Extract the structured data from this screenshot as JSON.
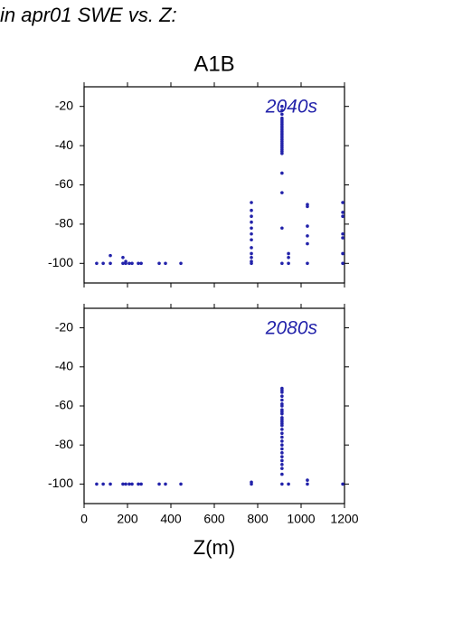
{
  "page_title": "in apr01 SWE vs. Z:",
  "chart_data": [
    {
      "type": "scatter",
      "title": "A1B",
      "annotation": "2040s",
      "xlim": [
        0,
        1200
      ],
      "ylim": [
        -110,
        -10
      ],
      "xticks": [
        0,
        200,
        400,
        600,
        800,
        1000,
        1200
      ],
      "xtick_labels": false,
      "yticks": [
        -20,
        -40,
        -60,
        -80,
        -100
      ],
      "series": [
        {
          "color": "#2222aa",
          "x": [
            58,
            88,
            121,
            121,
            179,
            179,
            192,
            192,
            208,
            221,
            250,
            263,
            346,
            375,
            446,
            771,
            771,
            771,
            771,
            771,
            771,
            771,
            771,
            771,
            771,
            771,
            771,
            912,
            912,
            912,
            912,
            912,
            912,
            912,
            912,
            912,
            912,
            912,
            912,
            912,
            912,
            912,
            912,
            912,
            912,
            912,
            912,
            912,
            912,
            912,
            912,
            912,
            912,
            942,
            942,
            942,
            1029,
            1029,
            1029,
            1029,
            1029,
            1029,
            1192,
            1192,
            1192,
            1192,
            1192,
            1192,
            1192
          ],
          "values": [
            -100,
            -100,
            -100,
            -96,
            -100,
            -97,
            -100,
            -99,
            -100,
            -100,
            -100,
            -100,
            -100,
            -100,
            -100,
            -69,
            -73,
            -76,
            -79,
            -82,
            -85,
            -88,
            -92,
            -95,
            -97,
            -99,
            -100,
            -20,
            -22,
            -24,
            -26,
            -27,
            -28,
            -29,
            -30,
            -31,
            -32,
            -33,
            -34,
            -35,
            -36,
            -37,
            -38,
            -39,
            -40,
            -41,
            -42,
            -43,
            -44,
            -54,
            -64,
            -82,
            -100,
            -95,
            -97,
            -100,
            -70,
            -71,
            -81,
            -86,
            -90,
            -100,
            -69,
            -74,
            -76,
            -85,
            -87,
            -95,
            -100
          ]
        }
      ]
    },
    {
      "type": "scatter",
      "annotation": "2080s",
      "xlabel": "Z(m)",
      "xlim": [
        0,
        1200
      ],
      "ylim": [
        -110,
        -10
      ],
      "xticks": [
        0,
        200,
        400,
        600,
        800,
        1000,
        1200
      ],
      "xtick_labels": true,
      "yticks": [
        -20,
        -40,
        -60,
        -80,
        -100
      ],
      "series": [
        {
          "color": "#2222aa",
          "x": [
            58,
            88,
            121,
            179,
            192,
            208,
            221,
            250,
            263,
            346,
            375,
            446,
            771,
            771,
            912,
            912,
            912,
            912,
            912,
            912,
            912,
            912,
            912,
            912,
            912,
            912,
            912,
            912,
            912,
            912,
            912,
            912,
            912,
            912,
            912,
            912,
            912,
            912,
            912,
            912,
            912,
            912,
            942,
            1029,
            1029,
            1192
          ],
          "values": [
            -100,
            -100,
            -100,
            -100,
            -100,
            -100,
            -100,
            -100,
            -100,
            -100,
            -100,
            -100,
            -99,
            -100,
            -51,
            -52,
            -53,
            -55,
            -57,
            -59,
            -60,
            -62,
            -63,
            -64,
            -66,
            -67,
            -68,
            -69,
            -70,
            -72,
            -74,
            -76,
            -78,
            -80,
            -82,
            -84,
            -86,
            -88,
            -90,
            -92,
            -95,
            -100,
            -100,
            -98,
            -100,
            -100
          ]
        }
      ]
    }
  ]
}
